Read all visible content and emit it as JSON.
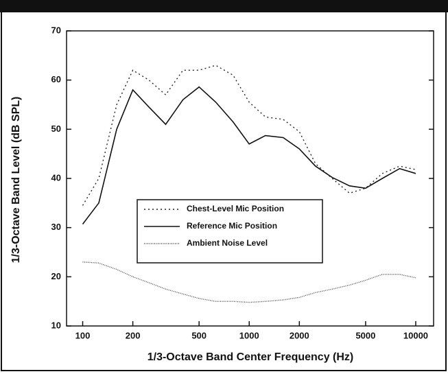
{
  "chart_data": {
    "type": "line",
    "xlabel": "1/3-Octave Band Center Frequency (Hz)",
    "ylabel": "1/3-Octave Band Level (dB SPL)",
    "x": [
      100,
      125,
      160,
      200,
      250,
      315,
      400,
      500,
      630,
      800,
      1000,
      1250,
      1600,
      2000,
      2500,
      3150,
      4000,
      5000,
      6300,
      8000,
      10000
    ],
    "series": [
      {
        "name": "Chest-Level Mic Position",
        "color": "#222222",
        "dash": "dotted",
        "values": [
          34.5,
          40,
          55,
          62,
          60,
          57,
          62,
          62,
          63,
          61,
          55.5,
          52.5,
          52,
          49.5,
          43,
          40,
          37,
          38,
          41,
          42.5,
          41.8
        ]
      },
      {
        "name": "Reference Mic Position",
        "color": "#111111",
        "dash": "solid",
        "values": [
          30.7,
          35,
          50,
          58,
          54.5,
          51,
          56,
          58.6,
          55.5,
          51.5,
          47,
          48.7,
          48.3,
          46,
          42.5,
          40.2,
          38.5,
          38,
          40,
          42,
          41
        ]
      },
      {
        "name": "Ambient Noise Level",
        "color": "#444444",
        "dash": "fine",
        "values": [
          23,
          22.8,
          21.5,
          20,
          18.8,
          17.5,
          16.5,
          15.6,
          15,
          15,
          14.8,
          15,
          15.3,
          15.8,
          16.8,
          17.5,
          18.3,
          19.3,
          20.5,
          20.5,
          19.8
        ]
      }
    ],
    "xscale": "log",
    "xlim": [
      80,
      12800
    ],
    "xticks": [
      100,
      200,
      500,
      1000,
      2000,
      5000,
      10000
    ],
    "ylim": [
      10,
      70
    ],
    "yticks": [
      10,
      20,
      30,
      40,
      50,
      60,
      70
    ],
    "grid": false
  }
}
